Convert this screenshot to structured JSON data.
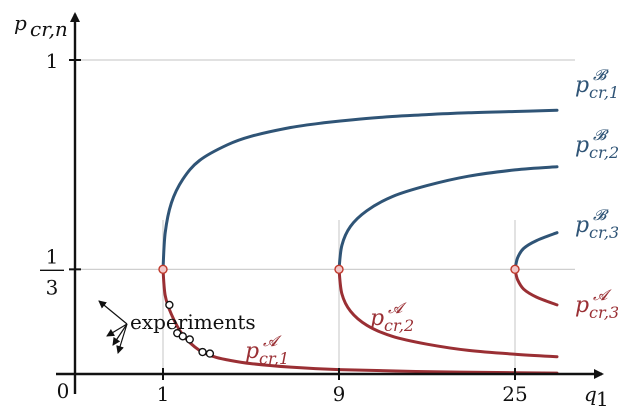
{
  "chart_data": {
    "type": "line",
    "ylabel": "p",
    "ylabel_sub": "cr,n",
    "xlabel": "q",
    "xlabel_sub": "1",
    "origin_label": "0",
    "xlim": [
      0,
      30
    ],
    "ylim": [
      0,
      1.05
    ],
    "x_scale": "sqrt",
    "x_ticks": [
      {
        "value": 1,
        "label": "1"
      },
      {
        "value": 9,
        "label": "9"
      },
      {
        "value": 25,
        "label": "25"
      }
    ],
    "y_ticks": [
      {
        "value": 1,
        "label": "1"
      },
      {
        "value": 0.3333,
        "label_num": "1",
        "label_den": "3"
      }
    ],
    "gridlines": {
      "horizontal": [
        1,
        0.3333
      ],
      "vertical": [
        9,
        25
      ]
    },
    "bifurcation_points": [
      {
        "q": 1,
        "p": 0.3333
      },
      {
        "q": 9,
        "p": 0.3333
      },
      {
        "q": 25,
        "p": 0.3333
      }
    ],
    "experiments": {
      "label": "experiments",
      "points": [
        {
          "q": 1.15,
          "p": 0.22
        },
        {
          "q": 1.35,
          "p": 0.13
        },
        {
          "q": 1.5,
          "p": 0.12
        },
        {
          "q": 1.7,
          "p": 0.11
        },
        {
          "q": 2.1,
          "p": 0.07
        },
        {
          "q": 2.35,
          "p": 0.065
        }
      ]
    },
    "colors": {
      "branch_A": "#9a2f34",
      "branch_B": "#2f5476",
      "grid": "#cfcfcf",
      "axis": "#111111"
    },
    "series": [
      {
        "branch": "B",
        "n": 1,
        "label_base": "p",
        "label_sub": "cr,1",
        "label_sup": "𝓑",
        "x": [
          1,
          1.05,
          1.2,
          1.5,
          2,
          3,
          4,
          6,
          8,
          10,
          13,
          16,
          20,
          25,
          30
        ],
        "y": [
          0.333,
          0.45,
          0.545,
          0.62,
          0.68,
          0.73,
          0.757,
          0.785,
          0.8,
          0.81,
          0.82,
          0.826,
          0.832,
          0.836,
          0.84
        ]
      },
      {
        "branch": "A",
        "n": 1,
        "label_base": "p",
        "label_sub": "cr,1",
        "label_sup": "𝓐",
        "x": [
          1,
          1.05,
          1.2,
          1.5,
          2,
          2.5,
          3,
          4,
          6,
          9,
          15,
          25,
          30
        ],
        "y": [
          0.333,
          0.25,
          0.19,
          0.125,
          0.075,
          0.055,
          0.045,
          0.033,
          0.022,
          0.014,
          0.008,
          0.004,
          0.003
        ]
      },
      {
        "branch": "B",
        "n": 2,
        "label_base": "p",
        "label_sub": "cr,2",
        "label_sup": "𝓑",
        "x": [
          9,
          9.2,
          9.8,
          11,
          13,
          16,
          20,
          25,
          30
        ],
        "y": [
          0.333,
          0.41,
          0.47,
          0.52,
          0.565,
          0.6,
          0.63,
          0.65,
          0.66
        ]
      },
      {
        "branch": "A",
        "n": 2,
        "label_base": "p",
        "label_sub": "cr,2",
        "label_sup": "𝓐",
        "x": [
          9,
          9.2,
          9.8,
          11,
          13,
          16,
          20,
          25,
          30
        ],
        "y": [
          0.333,
          0.255,
          0.2,
          0.155,
          0.12,
          0.095,
          0.075,
          0.063,
          0.055
        ]
      },
      {
        "branch": "B",
        "n": 3,
        "label_base": "p",
        "label_sub": "cr,3",
        "label_sup": "𝓑",
        "x": [
          25,
          25.3,
          26,
          27.5,
          30
        ],
        "y": [
          0.333,
          0.37,
          0.4,
          0.425,
          0.45
        ]
      },
      {
        "branch": "A",
        "n": 3,
        "label_base": "p",
        "label_sub": "cr,3",
        "label_sup": "𝓐",
        "x": [
          25,
          25.3,
          26,
          27.5,
          30
        ],
        "y": [
          0.333,
          0.3,
          0.27,
          0.245,
          0.22
        ]
      }
    ],
    "label_positions_note": ""
  }
}
